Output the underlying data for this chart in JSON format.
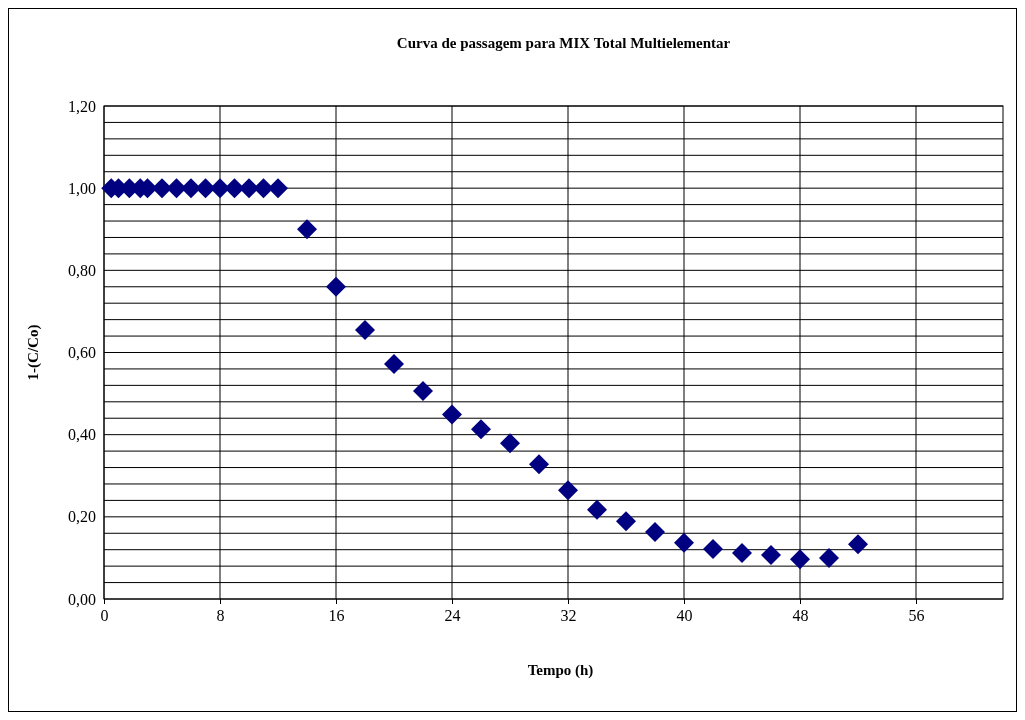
{
  "chart_data": {
    "type": "scatter",
    "title": "Curva de passagem para MIX Total Multielementar",
    "xlabel": "Tempo (h)",
    "ylabel": "1-(C/Co)",
    "marker": "diamond",
    "grid": true,
    "xlim": [
      0,
      62
    ],
    "xticks": [
      0,
      8,
      16,
      24,
      32,
      40,
      48,
      56
    ],
    "ylim": [
      0,
      1.2
    ],
    "yticks": [
      {
        "value": 0,
        "label": "0,00"
      },
      {
        "value": 0.04,
        "label": null
      },
      {
        "value": 0.08,
        "label": null
      },
      {
        "value": 0.12,
        "label": null
      },
      {
        "value": 0.16,
        "label": null
      },
      {
        "value": 0.2,
        "label": "0,20"
      },
      {
        "value": 0.24,
        "label": null
      },
      {
        "value": 0.28,
        "label": null
      },
      {
        "value": 0.32,
        "label": null
      },
      {
        "value": 0.36,
        "label": null
      },
      {
        "value": 0.4,
        "label": "0,40"
      },
      {
        "value": 0.44,
        "label": null
      },
      {
        "value": 0.48,
        "label": null
      },
      {
        "value": 0.52,
        "label": null
      },
      {
        "value": 0.56,
        "label": null
      },
      {
        "value": 0.6,
        "label": "0,60"
      },
      {
        "value": 0.64,
        "label": null
      },
      {
        "value": 0.68,
        "label": null
      },
      {
        "value": 0.72,
        "label": null
      },
      {
        "value": 0.76,
        "label": null
      },
      {
        "value": 0.8,
        "label": "0,80"
      },
      {
        "value": 0.84,
        "label": null
      },
      {
        "value": 0.88,
        "label": null
      },
      {
        "value": 0.92,
        "label": null
      },
      {
        "value": 0.96,
        "label": null
      },
      {
        "value": 1,
        "label": "1,00"
      },
      {
        "value": 1.04,
        "label": null
      },
      {
        "value": 1.08,
        "label": null
      },
      {
        "value": 1.12,
        "label": null
      },
      {
        "value": 1.16,
        "label": null
      },
      {
        "value": 1.2,
        "label": "1,20"
      }
    ],
    "series": [
      {
        "color": "#000080",
        "x": [
          0.5,
          1,
          1.75,
          2.5,
          3,
          4,
          5,
          6,
          7,
          8,
          9,
          10,
          11,
          12,
          14,
          16,
          18,
          20,
          22,
          24,
          26,
          28,
          30,
          32,
          34,
          36,
          38,
          40,
          42,
          44,
          46,
          48,
          50,
          52
        ],
        "values": [
          1,
          1,
          1,
          1,
          1,
          1,
          1,
          1,
          1,
          1,
          1,
          1,
          1,
          1,
          0.9,
          0.76,
          0.655,
          0.572,
          0.506,
          0.449,
          0.413,
          0.379,
          0.328,
          0.265,
          0.217,
          0.189,
          0.163,
          0.137,
          0.122,
          0.112,
          0.107,
          0.097,
          0.1,
          0.133
        ]
      }
    ]
  }
}
